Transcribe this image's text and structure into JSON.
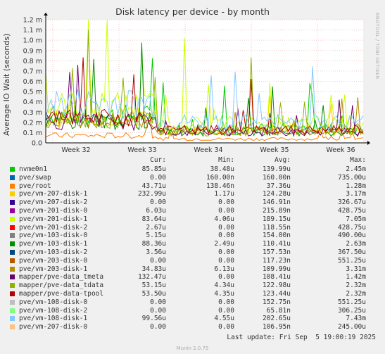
{
  "chart_data": {
    "type": "line",
    "title": "Disk latency per device - by month",
    "ylabel": "Average IO Wait (seconds)",
    "xlabel": "",
    "y_ticks": [
      "0.0",
      "0.1 m",
      "0.2 m",
      "0.3 m",
      "0.4 m",
      "0.5 m",
      "0.6 m",
      "0.7 m",
      "0.8 m",
      "0.9 m",
      "1.0 m",
      "1.1 m",
      "1.2 m"
    ],
    "ylim": [
      0,
      1.2
    ],
    "y_unit": "ms",
    "x_ticks": [
      "Week 32",
      "Week 33",
      "Week 34",
      "Week 35",
      "Week 36"
    ],
    "grid": true,
    "series": [
      {
        "name": "nvme0n1",
        "color": "#00cc00",
        "cur": "85.85u",
        "min": "38.48u",
        "avg": "139.99u",
        "max": "2.45m"
      },
      {
        "name": "pve/swap",
        "color": "#0066b3",
        "cur": "0.00",
        "min": "160.00n",
        "avg": "160.00n",
        "max": "735.00u"
      },
      {
        "name": "pve/root",
        "color": "#ff8000",
        "cur": "43.71u",
        "min": "138.46n",
        "avg": "37.36u",
        "max": "1.28m"
      },
      {
        "name": "pve/vm-207-disk-1",
        "color": "#ffcc00",
        "cur": "232.99u",
        "min": "1.17u",
        "avg": "124.28u",
        "max": "3.17m"
      },
      {
        "name": "pve/vm-207-disk-2",
        "color": "#330099",
        "cur": "0.00",
        "min": "0.00",
        "avg": "146.91n",
        "max": "326.67u"
      },
      {
        "name": "pve/vm-201-disk-0",
        "color": "#990099",
        "cur": "6.03u",
        "min": "0.00",
        "avg": "215.89n",
        "max": "428.75u"
      },
      {
        "name": "pve/vm-201-disk-1",
        "color": "#ccff00",
        "cur": "83.64u",
        "min": "4.06u",
        "avg": "189.15u",
        "max": "7.05m"
      },
      {
        "name": "pve/vm-201-disk-2",
        "color": "#ff0000",
        "cur": "2.67u",
        "min": "0.00",
        "avg": "118.55n",
        "max": "428.75u"
      },
      {
        "name": "pve/vm-103-disk-0",
        "color": "#808080",
        "cur": "5.15u",
        "min": "0.00",
        "avg": "154.00n",
        "max": "490.00u"
      },
      {
        "name": "pve/vm-103-disk-1",
        "color": "#008f00",
        "cur": "88.36u",
        "min": "2.49u",
        "avg": "110.41u",
        "max": "2.63m"
      },
      {
        "name": "pve/vm-103-disk-2",
        "color": "#00487d",
        "cur": "3.56u",
        "min": "0.00",
        "avg": "157.53n",
        "max": "367.50u"
      },
      {
        "name": "pve/vm-203-disk-0",
        "color": "#b35a00",
        "cur": "0.00",
        "min": "0.00",
        "avg": "117.23n",
        "max": "551.25u"
      },
      {
        "name": "pve/vm-203-disk-1",
        "color": "#b38f00",
        "cur": "34.83u",
        "min": "6.13u",
        "avg": "109.99u",
        "max": "3.31m"
      },
      {
        "name": "mapper/pve-data_tmeta",
        "color": "#6b006b",
        "cur": "132.47u",
        "min": "0.00",
        "avg": "108.41u",
        "max": "1.42m"
      },
      {
        "name": "mapper/pve-data_tdata",
        "color": "#8fb300",
        "cur": "53.15u",
        "min": "4.34u",
        "avg": "122.98u",
        "max": "2.32m"
      },
      {
        "name": "mapper/pve-data-tpool",
        "color": "#b30000",
        "cur": "53.50u",
        "min": "4.35u",
        "avg": "123.44u",
        "max": "2.32m"
      },
      {
        "name": "pve/vm-108-disk-0",
        "color": "#bebebe",
        "cur": "0.00",
        "min": "0.00",
        "avg": "152.75n",
        "max": "551.25u"
      },
      {
        "name": "pve/vm-108-disk-2",
        "color": "#80ff80",
        "cur": "0.00",
        "min": "0.00",
        "avg": "65.81n",
        "max": "306.25u"
      },
      {
        "name": "pve/vm-108-disk-1",
        "color": "#80c9ff",
        "cur": "99.56u",
        "min": "4.55u",
        "avg": "202.65u",
        "max": "7.43m"
      },
      {
        "name": "pve/vm-207-disk-0",
        "color": "#ffc080",
        "cur": "0.00",
        "min": "0.00",
        "avg": "106.95n",
        "max": "245.00u"
      }
    ]
  },
  "legend_headers": {
    "cur": "Cur:",
    "min": "Min:",
    "avg": "Avg:",
    "max": "Max:"
  },
  "last_update": "Last update: Fri Sep  5 19:00:19 2025",
  "side_credit": "RRDTOOL / TOBI OETIKER",
  "footer": "Munin 2.0.75"
}
